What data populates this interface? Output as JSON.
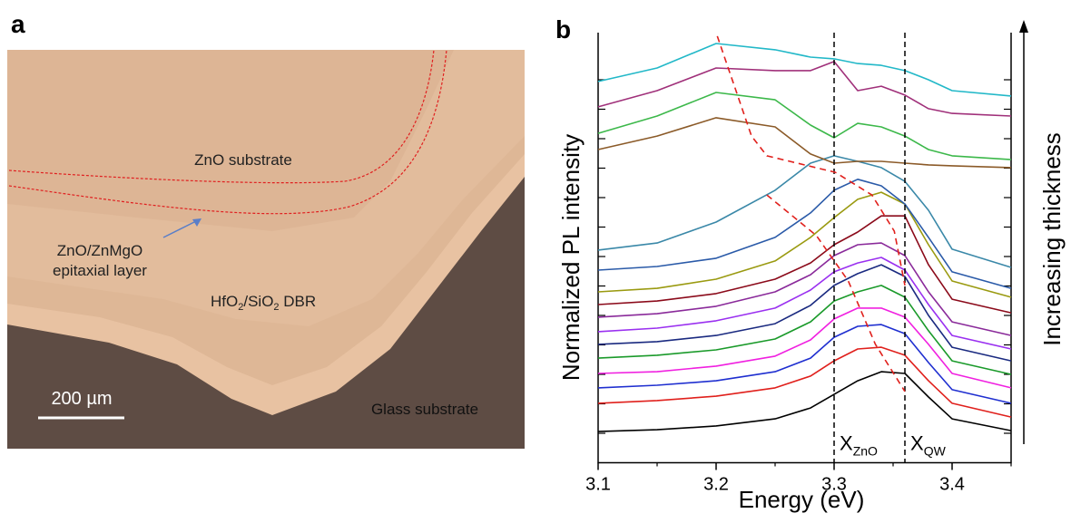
{
  "panel_a": {
    "label": "a",
    "substrate": "ZnO substrate",
    "epi_line1": "ZnO/ZnMgO",
    "epi_line2": "epitaxial layer",
    "dbr": [
      "HfO",
      "2",
      "/SiO",
      "2",
      " DBR"
    ],
    "scale_bar": "200 µm",
    "glass": "Glass substrate"
  },
  "chart_data": {
    "type": "line",
    "panel_label": "b",
    "x_label": "Energy (eV)",
    "y_label": "Normalized PL intensity",
    "right_label": "Increasing thickness",
    "xlim": [
      3.1,
      3.45
    ],
    "xticks": [
      3.1,
      3.2,
      3.3,
      3.4
    ],
    "xminor": [
      3.15,
      3.25,
      3.35,
      3.45
    ],
    "ylim": [
      -1,
      13.6
    ],
    "yticks": [
      0,
      1,
      2,
      3,
      4,
      5,
      6,
      7,
      8,
      9,
      10,
      11,
      12
    ],
    "x": [
      3.1,
      3.15,
      3.2,
      3.25,
      3.28,
      3.3,
      3.32,
      3.34,
      3.36,
      3.38,
      3.4,
      3.45
    ],
    "series": [
      {
        "color": "#000000",
        "values": [
          0.06,
          0.12,
          0.25,
          0.49,
          0.86,
          1.32,
          1.78,
          2.09,
          2.03,
          1.23,
          0.49,
          0.09
        ]
      },
      {
        "color": "#e0201c",
        "values": [
          1.02,
          1.11,
          1.26,
          1.54,
          1.94,
          2.46,
          2.86,
          2.92,
          2.65,
          1.78,
          1.02,
          0.55
        ]
      },
      {
        "color": "#1f2fd0",
        "values": [
          1.54,
          1.63,
          1.78,
          2.09,
          2.55,
          3.26,
          3.63,
          3.69,
          3.38,
          2.4,
          1.48,
          1.02
        ]
      },
      {
        "color": "#f020e0",
        "values": [
          2.03,
          2.09,
          2.28,
          2.62,
          3.17,
          3.88,
          4.25,
          4.25,
          3.94,
          3.02,
          2.03,
          1.54
        ]
      },
      {
        "color": "#1a9a2a",
        "values": [
          2.55,
          2.65,
          2.83,
          3.2,
          3.78,
          4.49,
          4.8,
          5.02,
          4.62,
          3.48,
          2.46,
          2.0
        ]
      },
      {
        "color": "#1a2a80",
        "values": [
          3.02,
          3.11,
          3.32,
          3.72,
          4.34,
          5.02,
          5.42,
          5.72,
          5.32,
          4.0,
          2.92,
          2.46
        ]
      },
      {
        "color": "#9a30f0",
        "values": [
          3.45,
          3.57,
          3.82,
          4.25,
          4.86,
          5.48,
          5.78,
          5.97,
          5.54,
          4.37,
          3.32,
          2.86
        ]
      },
      {
        "color": "#8a2a9a",
        "values": [
          3.94,
          4.06,
          4.31,
          4.8,
          5.38,
          6.03,
          6.4,
          6.46,
          6.03,
          4.8,
          3.78,
          3.32
        ]
      },
      {
        "color": "#8b0a1a",
        "values": [
          4.37,
          4.49,
          4.74,
          5.23,
          5.78,
          6.4,
          6.83,
          7.38,
          7.38,
          5.72,
          4.55,
          4.09
        ]
      },
      {
        "color": "#9a9a10",
        "values": [
          4.8,
          4.92,
          5.23,
          5.85,
          6.65,
          7.32,
          7.94,
          8.18,
          7.78,
          6.4,
          5.17,
          4.62
        ]
      },
      {
        "color": "#2a5aa8",
        "values": [
          5.54,
          5.66,
          5.94,
          6.65,
          7.48,
          8.25,
          8.62,
          8.4,
          7.78,
          6.65,
          5.48,
          4.92
        ]
      },
      {
        "color": "#3a88a8",
        "values": [
          6.22,
          6.46,
          7.17,
          8.25,
          9.17,
          9.42,
          9.23,
          9.02,
          8.55,
          7.57,
          6.25,
          5.63
        ]
      },
      {
        "color": "#8b5a28",
        "values": [
          9.63,
          10.09,
          10.71,
          10.4,
          9.48,
          9.17,
          9.23,
          9.23,
          9.17,
          9.11,
          9.08,
          9.02
        ]
      },
      {
        "color": "#3cb84a",
        "values": [
          10.18,
          10.77,
          11.57,
          11.32,
          10.46,
          10.03,
          10.52,
          10.4,
          10.09,
          9.63,
          9.42,
          9.29
        ]
      },
      {
        "color": "#a0307a",
        "values": [
          11.08,
          11.63,
          12.4,
          12.31,
          12.31,
          12.62,
          11.63,
          11.78,
          11.48,
          11.02,
          10.86,
          10.77
        ]
      },
      {
        "color": "#22b8c8",
        "values": [
          11.94,
          12.4,
          13.23,
          13.02,
          12.77,
          12.71,
          12.55,
          12.49,
          12.31,
          12.0,
          11.63,
          11.45
        ]
      }
    ],
    "vlines": [
      {
        "x": 3.3,
        "label": "X",
        "sub": "ZnO"
      },
      {
        "x": 3.36,
        "label": "X",
        "sub": "QW"
      }
    ],
    "guides": [
      {
        "color": "#e0201c",
        "x": [
          3.201,
          3.23,
          3.243,
          3.301,
          3.332,
          3.351,
          3.36
        ],
        "y": [
          13.48,
          10.09,
          9.42,
          8.86,
          8.09,
          6.86,
          5.02
        ]
      },
      {
        "color": "#e0201c",
        "x": [
          3.243,
          3.285,
          3.312,
          3.335,
          3.36
        ],
        "y": [
          8.09,
          6.71,
          5.17,
          3.02,
          1.42
        ]
      }
    ]
  }
}
